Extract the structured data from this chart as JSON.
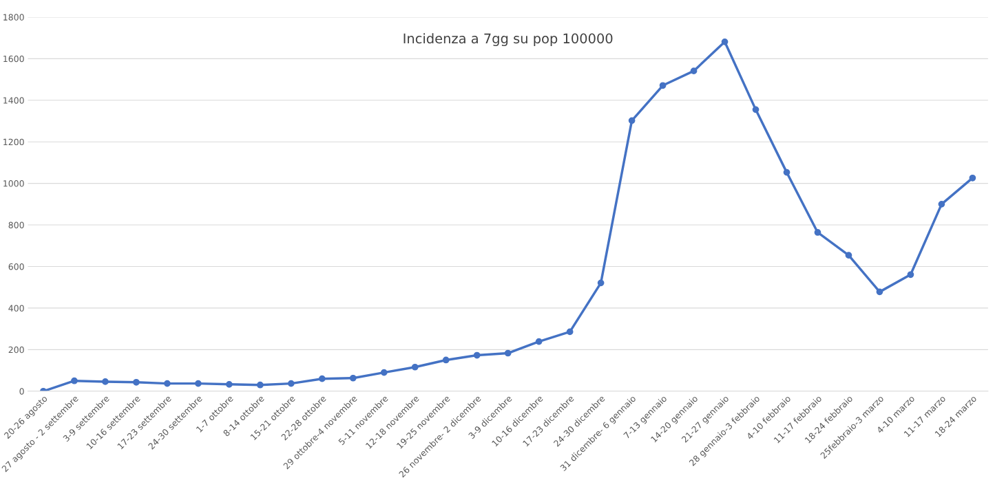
{
  "chart_data": {
    "type": "line",
    "title": "Incidenza a 7gg su pop 100000",
    "categories": [
      "20-26 agosto",
      "27 agosto - 2 settembre",
      "3-9 settembre",
      "10-16 settembre",
      "17-23 settembre",
      "24-30 settembre",
      "1-7 ottobre",
      "8-14 ottobre",
      "15-21 ottobre",
      "22-28 ottobre",
      "29 ottobre-4 novembre",
      "5-11 novembre",
      "12-18 novembre",
      "19-25 novembre",
      "26 novembre- 2 dicembre",
      "3-9 dicembre",
      "10-16 dicembre",
      "17-23 dicembre",
      "24-30 dicembre",
      "31 dicembre- 6 gennaio",
      "7-13 gennaio",
      "14-20 gennaio",
      "21-27 gennaio",
      "28 gennaio-3 febbraio",
      "4-10 febbraio",
      "11-17 febbraio",
      "18-24 febbraio",
      "25febbraio-3 marzo",
      "4-10 marzo",
      "11-17 marzo",
      "18-24 marzo"
    ],
    "series": [
      {
        "color": "#4472c4",
        "values": [
          0,
          50,
          46,
          43,
          37,
          37,
          33,
          30,
          37,
          60,
          63,
          90,
          116,
          150,
          173,
          183,
          239,
          286,
          521,
          1302,
          1471,
          1541,
          1681,
          1355,
          1053,
          764,
          654,
          478,
          561,
          900,
          1026
        ]
      }
    ],
    "ylim": [
      0,
      1800
    ],
    "yticks": [
      0,
      200,
      400,
      600,
      800,
      1000,
      1200,
      1400,
      1600,
      1800
    ],
    "grid": "y",
    "marker": "circle",
    "line_style": "solid"
  }
}
